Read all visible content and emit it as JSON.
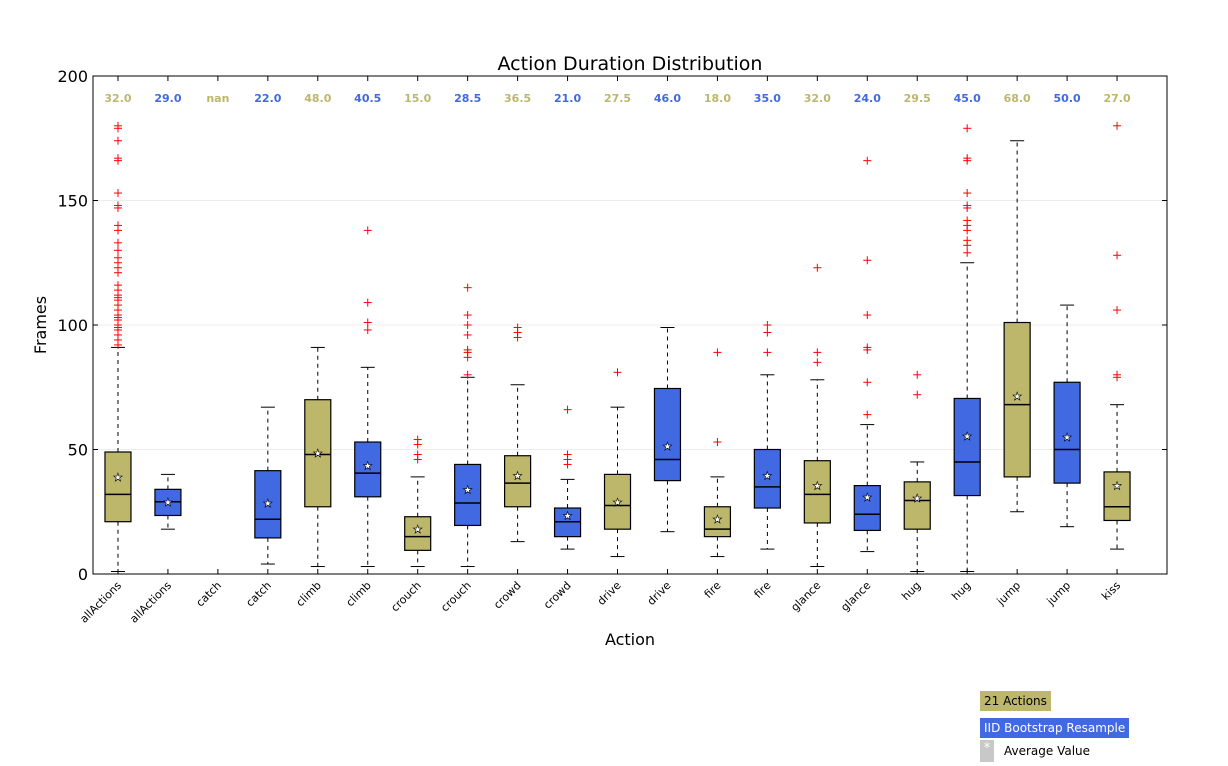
{
  "colors": {
    "all_actions": "#bdb76b",
    "bootstrap": "#4169e1",
    "median": "#000000",
    "whisker": "#000000",
    "outlier": "#ff0000"
  },
  "legend": {
    "all_actions_label": "21 Actions",
    "bootstrap_label": "IID Bootstrap Resample",
    "average_label": "Average Value",
    "average_symbol": "*"
  },
  "chart_data": {
    "type": "box",
    "title": "Action Duration Distribution",
    "xlabel": "Action",
    "ylabel": "Frames",
    "ylim": [
      0,
      200
    ],
    "yticks": [
      "0",
      "50",
      "100",
      "150",
      "200"
    ],
    "grid": "horizontal",
    "legend_position": "bottom-right",
    "boxes": [
      {
        "label": "allActions",
        "group": "all_actions",
        "top_label": "32.0",
        "q1": 21,
        "median": 32,
        "q3": 49,
        "whisker_low": 1,
        "whisker_high": 91,
        "mean": 39,
        "outliers": [
          92,
          94,
          96,
          98,
          99,
          100,
          102,
          103,
          104,
          106,
          108,
          110,
          111,
          112,
          114,
          116,
          121,
          123,
          125,
          127,
          130,
          133,
          138,
          140,
          147,
          148,
          153,
          166,
          167,
          174,
          179,
          180
        ]
      },
      {
        "label": "allActions",
        "group": "bootstrap",
        "top_label": "29.0",
        "q1": 23.5,
        "median": 29,
        "q3": 34,
        "whisker_low": 18,
        "whisker_high": 40,
        "mean": 29,
        "outliers": []
      },
      {
        "label": "catch",
        "group": "all_actions",
        "top_label": "nan",
        "q1": null,
        "median": null,
        "q3": null,
        "whisker_low": null,
        "whisker_high": null,
        "mean": null,
        "outliers": []
      },
      {
        "label": "catch",
        "group": "bootstrap",
        "top_label": "22.0",
        "q1": 14.5,
        "median": 22,
        "q3": 41.5,
        "whisker_low": 4,
        "whisker_high": 67,
        "mean": 28.5,
        "outliers": []
      },
      {
        "label": "climb",
        "group": "all_actions",
        "top_label": "48.0",
        "q1": 27,
        "median": 48,
        "q3": 70,
        "whisker_low": 3,
        "whisker_high": 91,
        "mean": 48.5,
        "outliers": []
      },
      {
        "label": "climb",
        "group": "bootstrap",
        "top_label": "40.5",
        "q1": 31,
        "median": 40.5,
        "q3": 53,
        "whisker_low": 3,
        "whisker_high": 83,
        "mean": 43.5,
        "outliers": [
          98,
          101,
          109,
          138
        ]
      },
      {
        "label": "crouch",
        "group": "all_actions",
        "top_label": "15.0",
        "q1": 9.5,
        "median": 15,
        "q3": 23,
        "whisker_low": 3,
        "whisker_high": 39,
        "mean": 18,
        "outliers": [
          46,
          48,
          52,
          54
        ]
      },
      {
        "label": "crouch",
        "group": "bootstrap",
        "top_label": "28.5",
        "q1": 19.5,
        "median": 28.5,
        "q3": 44,
        "whisker_low": 3,
        "whisker_high": 79,
        "mean": 34,
        "outliers": [
          80,
          87,
          89,
          90,
          96,
          100,
          104,
          115
        ]
      },
      {
        "label": "crowd",
        "group": "all_actions",
        "top_label": "36.5",
        "q1": 27,
        "median": 36.5,
        "q3": 47.5,
        "whisker_low": 13,
        "whisker_high": 76,
        "mean": 39.5,
        "outliers": [
          95,
          97,
          99
        ]
      },
      {
        "label": "crowd",
        "group": "bootstrap",
        "top_label": "21.0",
        "q1": 15,
        "median": 21,
        "q3": 26.5,
        "whisker_low": 10,
        "whisker_high": 38,
        "mean": 23.5,
        "outliers": [
          44,
          46,
          48,
          66
        ]
      },
      {
        "label": "drive",
        "group": "all_actions",
        "top_label": "27.5",
        "q1": 18,
        "median": 27.5,
        "q3": 40,
        "whisker_low": 7,
        "whisker_high": 67,
        "mean": 29,
        "outliers": [
          81
        ]
      },
      {
        "label": "drive",
        "group": "bootstrap",
        "top_label": "46.0",
        "q1": 37.5,
        "median": 46,
        "q3": 74.5,
        "whisker_low": 17,
        "whisker_high": 99,
        "mean": 51.5,
        "outliers": []
      },
      {
        "label": "fire",
        "group": "all_actions",
        "top_label": "18.0",
        "q1": 15,
        "median": 18,
        "q3": 27,
        "whisker_low": 7,
        "whisker_high": 39,
        "mean": 22,
        "outliers": [
          53,
          89
        ]
      },
      {
        "label": "fire",
        "group": "bootstrap",
        "top_label": "35.0",
        "q1": 26.5,
        "median": 35,
        "q3": 50,
        "whisker_low": 10,
        "whisker_high": 80,
        "mean": 39.5,
        "outliers": [
          89,
          97,
          100
        ]
      },
      {
        "label": "glance",
        "group": "all_actions",
        "top_label": "32.0",
        "q1": 20.5,
        "median": 32,
        "q3": 45.5,
        "whisker_low": 3,
        "whisker_high": 78,
        "mean": 35.5,
        "outliers": [
          85,
          89,
          123
        ]
      },
      {
        "label": "glance",
        "group": "bootstrap",
        "top_label": "24.0",
        "q1": 17.5,
        "median": 24,
        "q3": 35.5,
        "whisker_low": 9,
        "whisker_high": 60,
        "mean": 31,
        "outliers": [
          64,
          77,
          90,
          91,
          104,
          126,
          166
        ]
      },
      {
        "label": "hug",
        "group": "all_actions",
        "top_label": "29.5",
        "q1": 18,
        "median": 29.5,
        "q3": 37,
        "whisker_low": 1,
        "whisker_high": 45,
        "mean": 30.5,
        "outliers": [
          72,
          80
        ]
      },
      {
        "label": "hug",
        "group": "bootstrap",
        "top_label": "45.0",
        "q1": 31.5,
        "median": 45,
        "q3": 70.5,
        "whisker_low": 1,
        "whisker_high": 125,
        "mean": 55.5,
        "outliers": [
          129,
          132,
          134,
          138,
          140,
          142,
          147,
          148,
          153,
          166,
          167,
          179
        ]
      },
      {
        "label": "jump",
        "group": "all_actions",
        "top_label": "68.0",
        "q1": 39,
        "median": 68,
        "q3": 101,
        "whisker_low": 25,
        "whisker_high": 174,
        "mean": 71.5,
        "outliers": []
      },
      {
        "label": "jump",
        "group": "bootstrap",
        "top_label": "50.0",
        "q1": 36.5,
        "median": 50,
        "q3": 77,
        "whisker_low": 19,
        "whisker_high": 108,
        "mean": 55,
        "outliers": []
      },
      {
        "label": "kiss",
        "group": "all_actions",
        "top_label": "27.0",
        "q1": 21.5,
        "median": 27,
        "q3": 41,
        "whisker_low": 10,
        "whisker_high": 68,
        "mean": 35.5,
        "outliers": [
          79,
          80,
          106,
          128,
          180
        ]
      }
    ]
  }
}
